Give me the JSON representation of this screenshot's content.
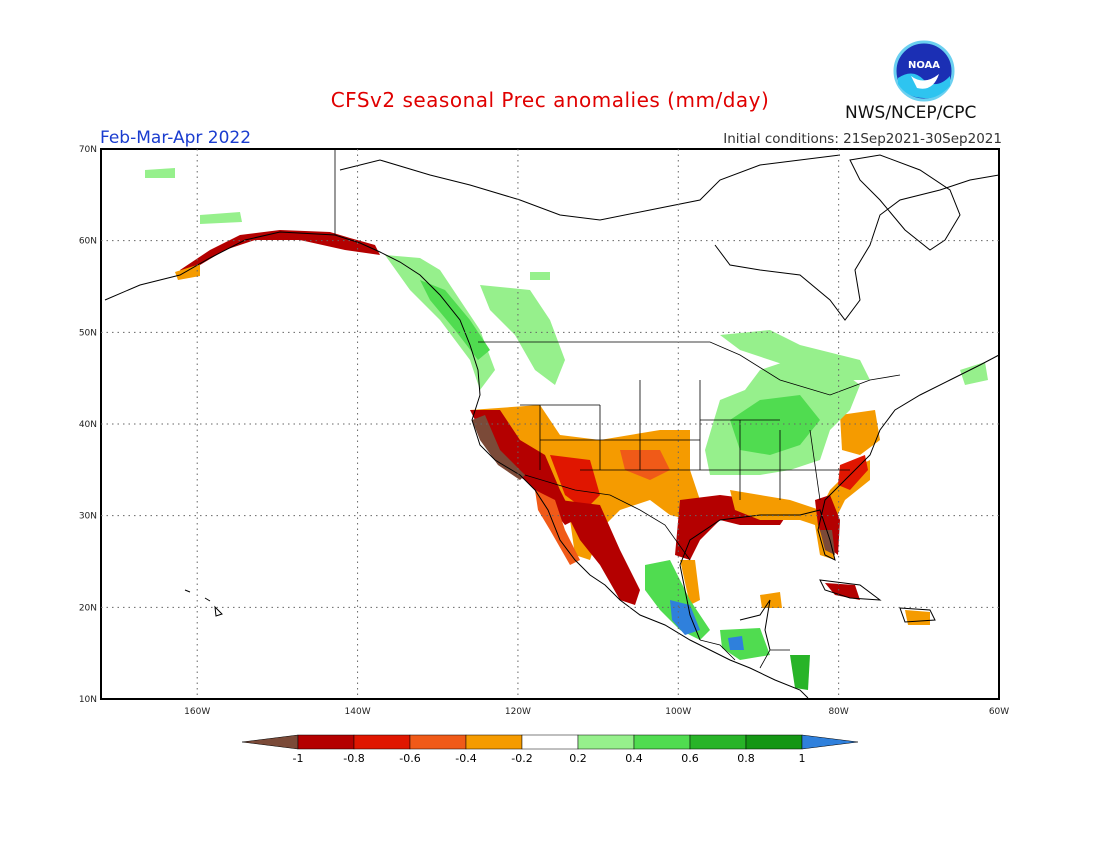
{
  "title": "CFSv2 seasonal Prec anomalies (mm/day)",
  "period": "Feb-Mar-Apr 2022",
  "initial_conditions": "Initial conditions: 21Sep2021-30Sep2021",
  "agency": "NWS/NCEP/CPC",
  "logo_text": "NOAA",
  "map": {
    "lon_range": [
      -172,
      -60
    ],
    "lat_range": [
      10,
      70
    ],
    "lat_ticks": [
      "10N",
      "20N",
      "30N",
      "40N",
      "50N",
      "60N",
      "70N"
    ],
    "lon_ticks": [
      "160W",
      "140W",
      "120W",
      "100W",
      "80W",
      "60W"
    ],
    "grid": "dotted",
    "anomaly_regions": [
      {
        "name": "California coast",
        "level": -1.0
      },
      {
        "name": "Southwest US",
        "level": -0.8
      },
      {
        "name": "Southern Plains",
        "level": -0.4
      },
      {
        "name": "Texas Gulf coast",
        "level": -0.8
      },
      {
        "name": "Florida",
        "level": -1.0
      },
      {
        "name": "Southeast US",
        "level": -0.4
      },
      {
        "name": "Mid-Atlantic",
        "level": -0.4
      },
      {
        "name": "Ohio Valley / Great Lakes",
        "level": 0.4
      },
      {
        "name": "Pacific Northwest",
        "level": 0.4
      },
      {
        "name": "British Columbia coast",
        "level": 0.6
      },
      {
        "name": "Southern Alaska coast",
        "level": -0.8
      },
      {
        "name": "Southern Mexico",
        "level": 1.0
      },
      {
        "name": "Caribbean (Cuba)",
        "level": -0.8
      }
    ]
  },
  "colorbar": {
    "labels": [
      "-1",
      "-0.8",
      "-0.6",
      "-0.4",
      "-0.2",
      "0.2",
      "0.4",
      "0.6",
      "0.8",
      "1"
    ],
    "colors": [
      "#7b4a38",
      "#b40000",
      "#e01600",
      "#f05a18",
      "#f59b00",
      "#ffffff",
      "#96f08c",
      "#50dc50",
      "#28b428",
      "#149614",
      "#2f80dc"
    ]
  }
}
